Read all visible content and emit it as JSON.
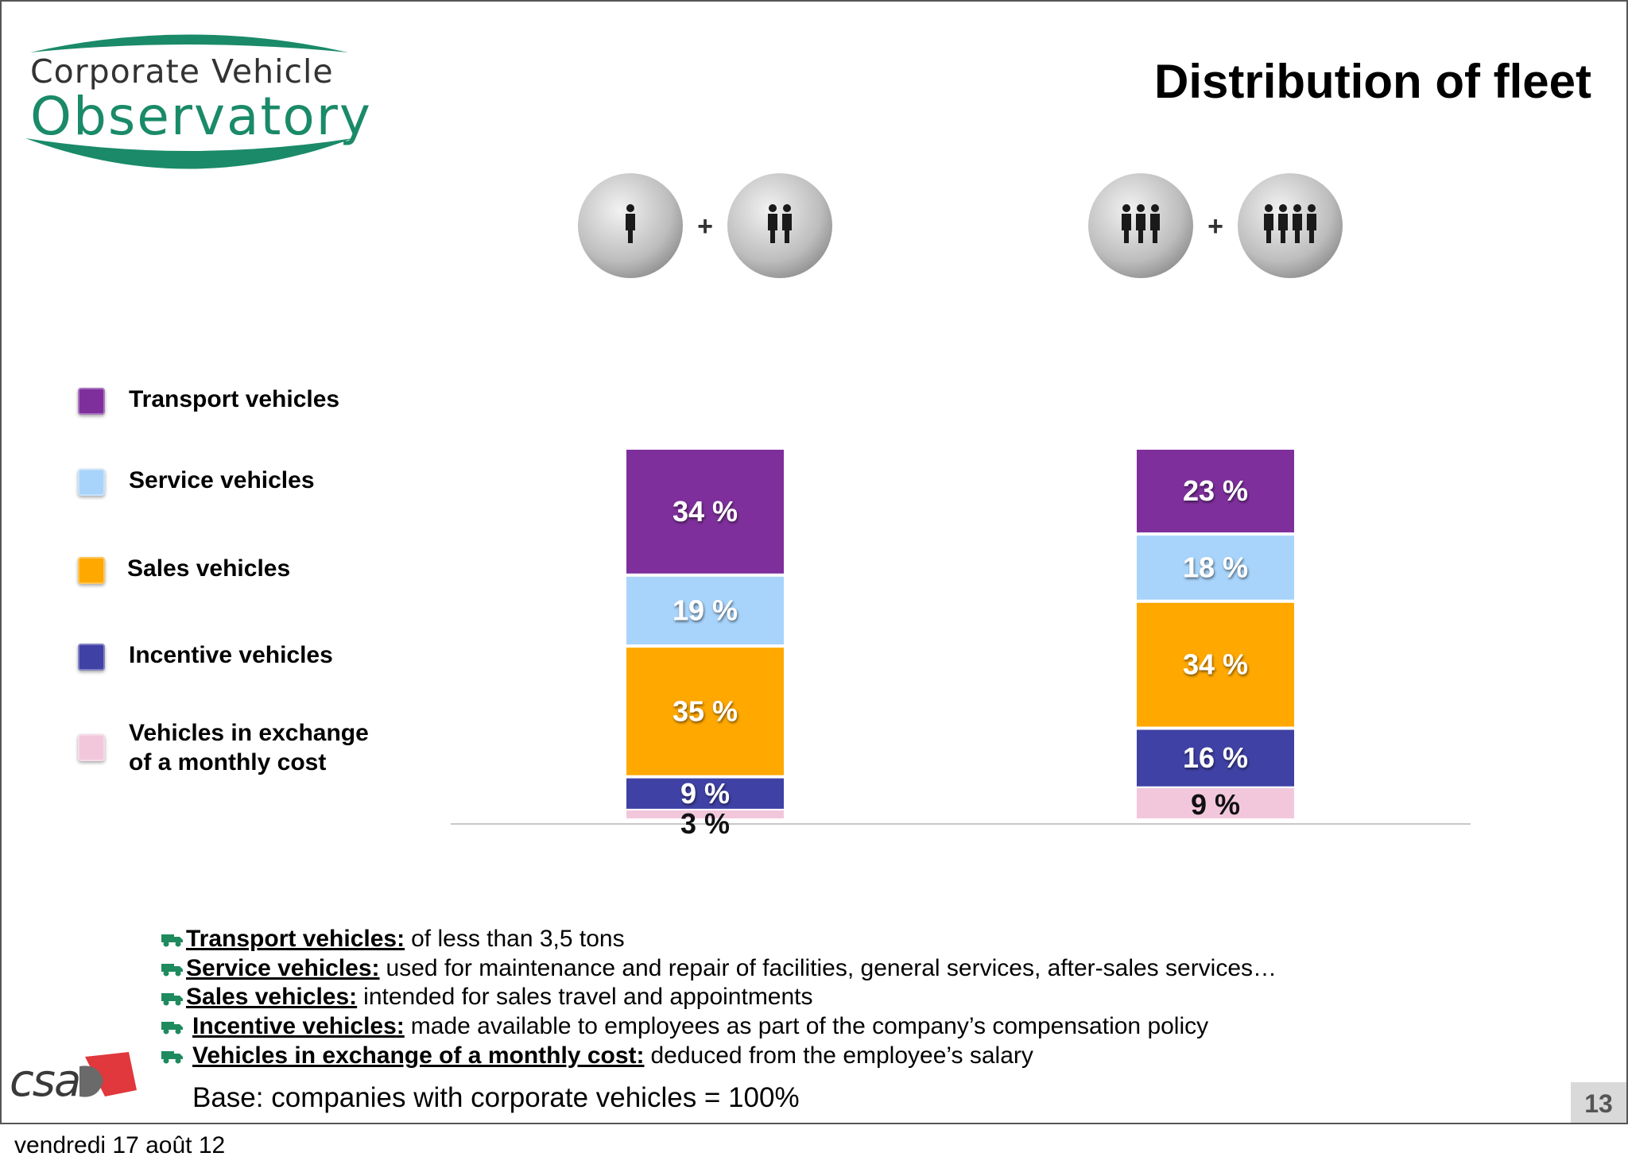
{
  "logo": {
    "line1": "Corporate Vehicle",
    "line2": "Observatory"
  },
  "title": "Distribution of fleet",
  "legend": [
    {
      "label": "Transport vehicles",
      "color": "#7e2f9c"
    },
    {
      "label": "Service vehicles",
      "color": "#a8d4fb"
    },
    {
      "label": "Sales vehicles",
      "color": "#ffa800"
    },
    {
      "label": "Incentive vehicles",
      "color": "#3f41a5"
    },
    {
      "label": "Vehicles in exchange of a monthly cost",
      "line1": "Vehicles in exchange",
      "line2": "of a monthly cost",
      "color": "#f2c7dc"
    }
  ],
  "chart_data": {
    "type": "bar",
    "stacked": true,
    "title": "Distribution of fleet",
    "categories": [
      "1 to 2 persons icon group",
      "3 to 4 persons icon group"
    ],
    "category_icons": [
      [
        "person-1",
        "person-2"
      ],
      [
        "person-3",
        "person-4"
      ]
    ],
    "series": [
      {
        "name": "Transport vehicles",
        "values": [
          34,
          23
        ],
        "labels": [
          "34 %",
          "23 %"
        ],
        "color": "#7e2f9c",
        "label_color": "#ffffff"
      },
      {
        "name": "Service vehicles",
        "values": [
          19,
          18
        ],
        "labels": [
          "19 %",
          "18 %"
        ],
        "color": "#a8d4fb",
        "label_color": "#ffffff"
      },
      {
        "name": "Sales vehicles",
        "values": [
          35,
          34
        ],
        "labels": [
          "35 %",
          "34 %"
        ],
        "color": "#ffa800",
        "label_color": "#ffffff"
      },
      {
        "name": "Incentive vehicles",
        "values": [
          9,
          16
        ],
        "labels": [
          "9 %",
          "16 %"
        ],
        "color": "#3f41a5",
        "label_color": "#ffffff"
      },
      {
        "name": "Vehicles in exchange of a monthly cost",
        "values": [
          3,
          9
        ],
        "labels": [
          "3 %",
          "9 %"
        ],
        "color": "#f2c7dc",
        "label_color": "#111111"
      }
    ],
    "ylim": [
      0,
      100
    ],
    "unit": "%",
    "xlabel": "",
    "ylabel": "",
    "grid": false,
    "legend_position": "left"
  },
  "notes": [
    {
      "term": "Transport vehicles:",
      "text": "of less than 3,5 tons"
    },
    {
      "term": "Service vehicles:",
      "text": "used for maintenance and repair of facilities, general services, after-sales services…"
    },
    {
      "term": "Sales vehicles:",
      "text": "intended for sales travel and appointments"
    },
    {
      "term": "Incentive vehicles:",
      "text": "made available to employees as part of the company’s compensation policy"
    },
    {
      "term": "Vehicles in exchange of a monthly cost:",
      "text": "deduced from the employee’s salary"
    }
  ],
  "base_note": "Base: companies with corporate vehicles = 100%",
  "csa_logo": "csa",
  "page_number": "13",
  "footer_date": "vendredi 17 août 12",
  "colors": {
    "logo_green": "#1a8a68",
    "note_icon": "#1e8a5e"
  }
}
